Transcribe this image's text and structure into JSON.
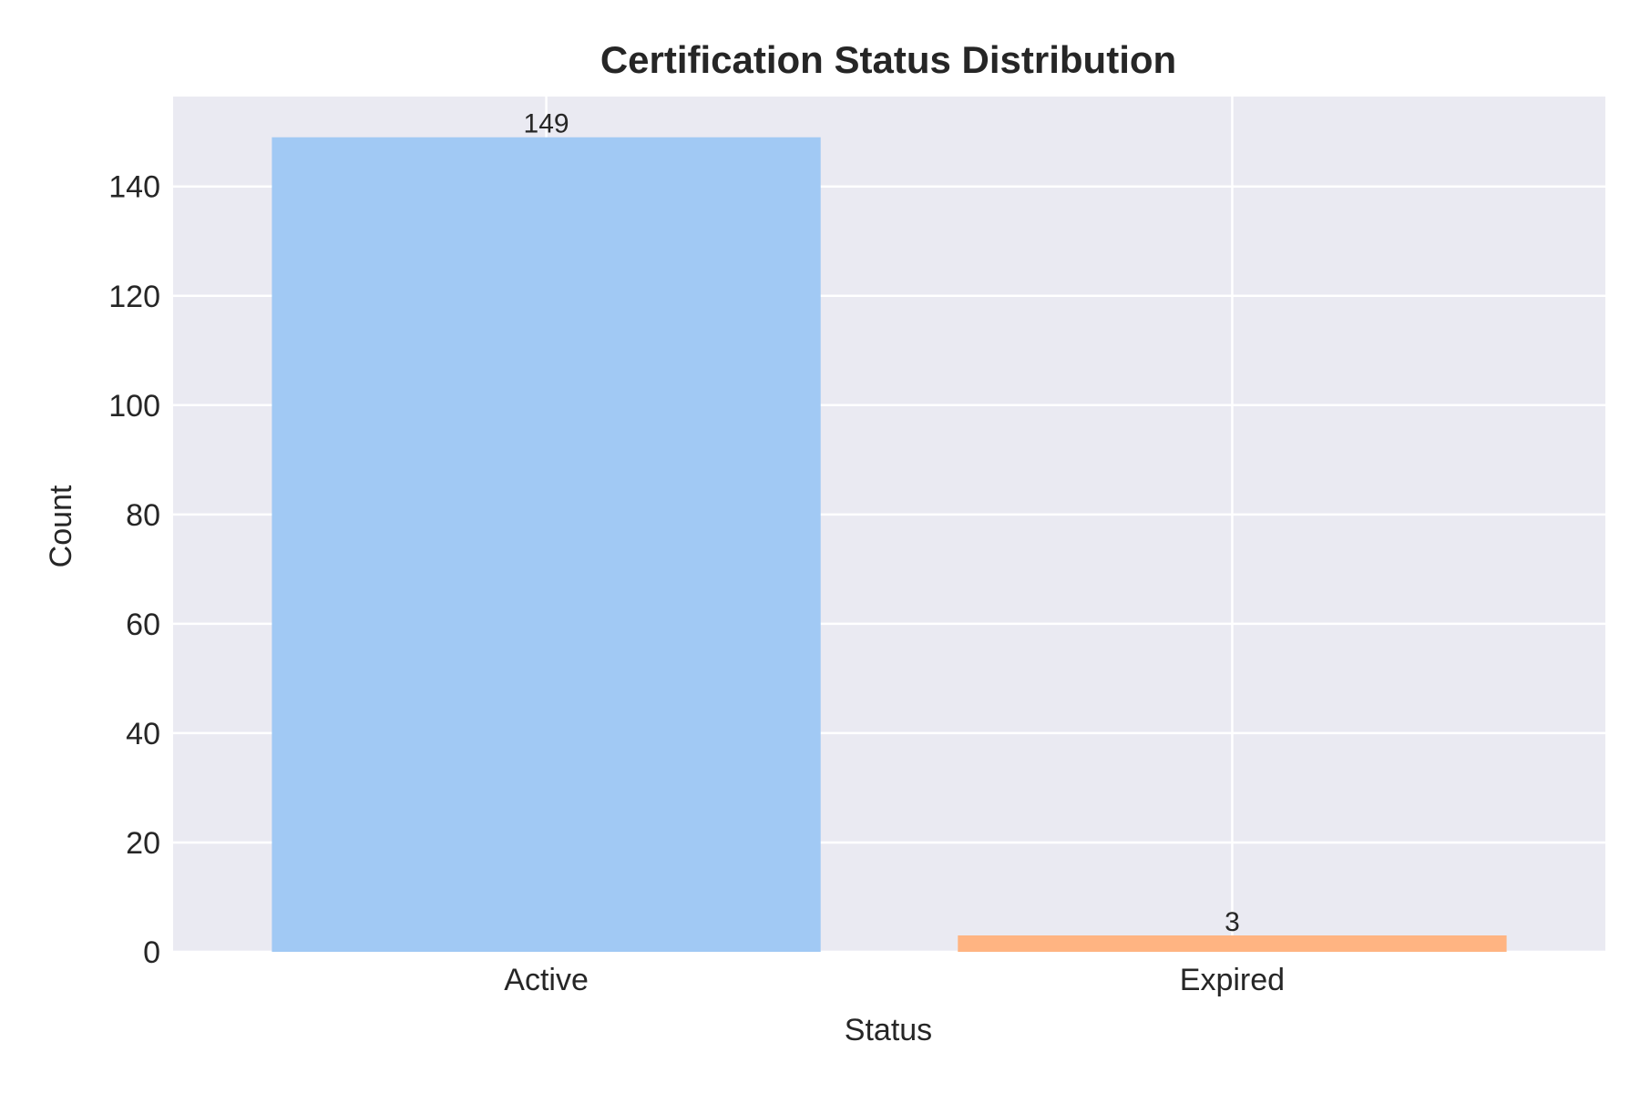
{
  "chart_data": {
    "type": "bar",
    "title": "Certification Status Distribution",
    "xlabel": "Status",
    "ylabel": "Count",
    "categories": [
      "Active",
      "Expired"
    ],
    "values": [
      149,
      3
    ],
    "data_labels": [
      "149",
      "3"
    ],
    "colors": [
      "#a1c9f4",
      "#ffb482"
    ],
    "ylim": [
      0,
      156.45
    ],
    "yticks": [
      0,
      20,
      40,
      60,
      80,
      100,
      120,
      140
    ],
    "ytick_labels": [
      "0",
      "20",
      "40",
      "60",
      "80",
      "100",
      "120",
      "140"
    ],
    "grid": true,
    "plot_background": "#eaeaf2",
    "grid_color": "#ffffff",
    "text_color": "#262626"
  }
}
